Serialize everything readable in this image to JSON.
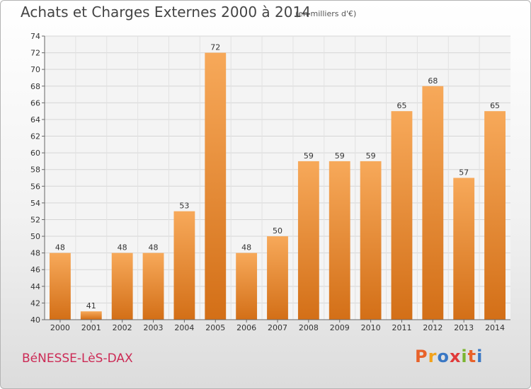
{
  "header": {
    "title": "Achats et Charges Externes 2000 à 2014",
    "subtitle": "(en milliers d'€)"
  },
  "footer": {
    "place": "BéNESSE-LèS-DAX",
    "logo": {
      "letters": [
        "P",
        "r",
        "o",
        "x",
        "i",
        "t",
        "i"
      ],
      "colors": [
        "#e8622a",
        "#f2a21a",
        "#3a78c4",
        "#e03a3a",
        "#7bb531",
        "#e8622a",
        "#3a78c4"
      ]
    }
  },
  "chart_data": {
    "type": "bar",
    "title": "Achats et Charges Externes 2000 à 2014",
    "subtitle": "(en milliers d'€)",
    "categories": [
      "2000",
      "2001",
      "2002",
      "2003",
      "2004",
      "2005",
      "2006",
      "2007",
      "2008",
      "2009",
      "2010",
      "2011",
      "2012",
      "2013",
      "2014"
    ],
    "values": [
      48,
      41,
      48,
      48,
      53,
      72,
      48,
      50,
      59,
      59,
      59,
      65,
      68,
      57,
      65
    ],
    "ylim": [
      40,
      74
    ],
    "yticks": [
      40,
      42,
      44,
      46,
      48,
      50,
      52,
      54,
      56,
      58,
      60,
      62,
      64,
      66,
      68,
      70,
      72,
      74
    ],
    "grid": true,
    "bar_color": "#f0902f",
    "xlabel": "",
    "ylabel": ""
  }
}
